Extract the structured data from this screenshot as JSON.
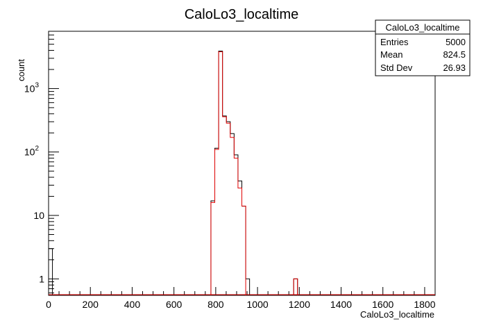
{
  "chart_data": {
    "type": "histogram",
    "title": "CaloLo3_localtime",
    "xlabel": "CaloLo3_localtime",
    "ylabel": "count",
    "xlim": [
      0,
      1850
    ],
    "ylim": [
      0.55,
      8000
    ],
    "y_scale": "log",
    "x_ticks": [
      0,
      200,
      400,
      600,
      800,
      1000,
      1200,
      1400,
      1600,
      1800
    ],
    "y_ticks": [
      {
        "value": 1,
        "label": "1"
      },
      {
        "value": 10,
        "label": "10"
      },
      {
        "value": 100,
        "label": "10",
        "exp": "2"
      },
      {
        "value": 1000,
        "label": "10",
        "exp": "3"
      }
    ],
    "bin_width": 18.5,
    "series": [
      {
        "color": "#000000",
        "bins": [
          {
            "x0": 0,
            "v": 3
          },
          {
            "x0": 777,
            "v": 17
          },
          {
            "x0": 795.5,
            "v": 115
          },
          {
            "x0": 814,
            "v": 3900
          },
          {
            "x0": 832.5,
            "v": 370
          },
          {
            "x0": 851,
            "v": 300
          },
          {
            "x0": 869.5,
            "v": 195
          },
          {
            "x0": 888,
            "v": 90
          },
          {
            "x0": 906.5,
            "v": 35
          },
          {
            "x0": 925,
            "v": 14
          },
          {
            "x0": 943.5,
            "v": 1
          },
          {
            "x0": 1173,
            "v": 1
          }
        ]
      },
      {
        "color": "#e00000",
        "bins": [
          {
            "x0": 777,
            "v": 16
          },
          {
            "x0": 795.5,
            "v": 110
          },
          {
            "x0": 814,
            "v": 3800
          },
          {
            "x0": 832.5,
            "v": 360
          },
          {
            "x0": 851,
            "v": 285
          },
          {
            "x0": 869.5,
            "v": 170
          },
          {
            "x0": 888,
            "v": 80
          },
          {
            "x0": 906.5,
            "v": 27
          },
          {
            "x0": 925,
            "v": 14
          },
          {
            "x0": 1173,
            "v": 1
          }
        ]
      }
    ],
    "stats_box": {
      "title": "CaloLo3_localtime",
      "rows": [
        {
          "label": "Entries",
          "value": "5000"
        },
        {
          "label": "Mean",
          "value": "824.5"
        },
        {
          "label": "Std Dev",
          "value": "26.93"
        }
      ]
    }
  }
}
